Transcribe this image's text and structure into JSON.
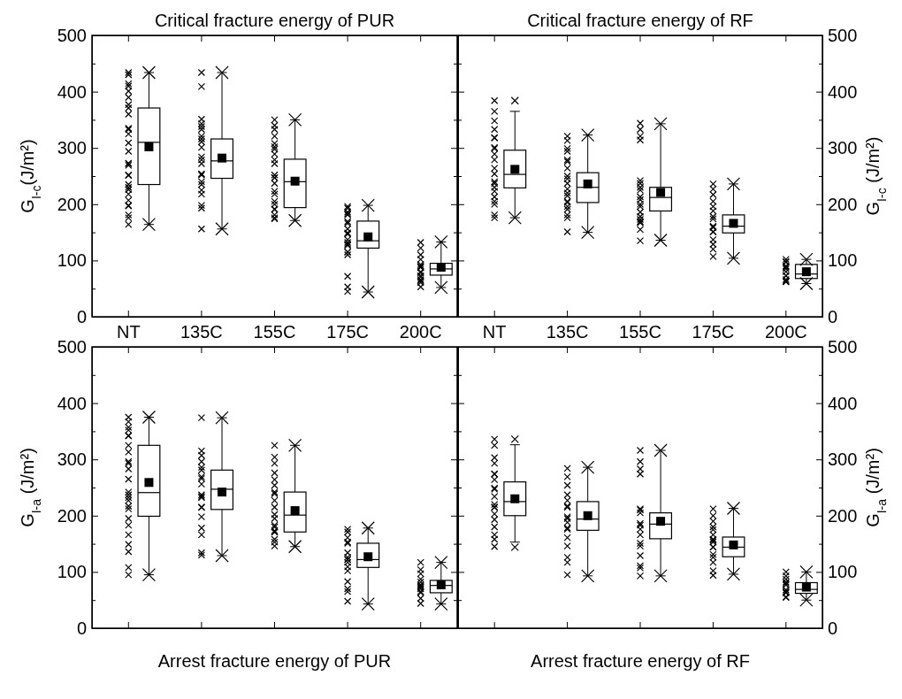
{
  "chart_data": [
    {
      "type": "box",
      "title": "Critical fracture energy of PUR",
      "ylabel": "G$_{I-c}$(J/m²)",
      "categories": [
        "NT",
        "135C",
        "155C",
        "175C",
        "200C"
      ],
      "ylim": [
        0,
        500
      ],
      "yticks": [
        0,
        {
          "value": 50,
          "label": null
        },
        100,
        {
          "value": 150,
          "label": null
        },
        200,
        {
          "value": 250,
          "label": null
        },
        300,
        {
          "value": 350,
          "label": null
        },
        400,
        {
          "value": 450,
          "label": null
        },
        500
      ],
      "marker": "cross",
      "series": [
        {
          "type": "scatter",
          "color": "#000000",
          "x": [
            "NT",
            "NT",
            "NT",
            "NT",
            "NT",
            "NT",
            "NT",
            "NT",
            "NT",
            "NT",
            "NT",
            "NT",
            "NT",
            "NT",
            "NT",
            "NT",
            "NT",
            "NT",
            "NT",
            "NT",
            "NT",
            "NT",
            "NT",
            "NT",
            "NT",
            "NT",
            "NT",
            "NT",
            "NT",
            "135C",
            "135C",
            "135C",
            "135C",
            "135C",
            "135C",
            "135C",
            "135C",
            "135C",
            "135C",
            "135C",
            "135C",
            "135C",
            "135C",
            "135C",
            "135C",
            "135C",
            "135C",
            "135C",
            "135C",
            "135C",
            "135C",
            "155C",
            "155C",
            "155C",
            "155C",
            "155C",
            "155C",
            "155C",
            "155C",
            "155C",
            "155C",
            "155C",
            "155C",
            "155C",
            "155C",
            "155C",
            "155C",
            "155C",
            "155C",
            "155C",
            "155C",
            "155C",
            "155C",
            "155C",
            "175C",
            "175C",
            "175C",
            "175C",
            "175C",
            "175C",
            "175C",
            "175C",
            "175C",
            "175C",
            "175C",
            "175C",
            "175C",
            "175C",
            "175C",
            "175C",
            "175C",
            "175C",
            "175C",
            "175C",
            "200C",
            "200C",
            "200C",
            "200C",
            "200C",
            "200C",
            "200C",
            "200C",
            "200C",
            "200C",
            "200C",
            "200C",
            "200C",
            "200C",
            "200C",
            "200C"
          ],
          "values": [
            434,
            430,
            410,
            414,
            401,
            390,
            371,
            377,
            360,
            335,
            333,
            325,
            309,
            294,
            273,
            269,
            272,
            251,
            252,
            235,
            226,
            230,
            207,
            218,
            197,
            198,
            176,
            164,
            181,
            434,
            409,
            351,
            343,
            333,
            338,
            321,
            316,
            311,
            301,
            284,
            272,
            279,
            254,
            252,
            225,
            235,
            218,
            198,
            193,
            156,
            240,
            350,
            340,
            333,
            321,
            308,
            302,
            298,
            272,
            279,
            289,
            252,
            247,
            247,
            237,
            218,
            223,
            205,
            200,
            191,
            191,
            181,
            174,
            176,
            193,
            196,
            181,
            183,
            186,
            169,
            166,
            156,
            147,
            149,
            129,
            137,
            132,
            127,
            115,
            110,
            115,
            72,
            53,
            45,
            132,
            122,
            110,
            88,
            93,
            88,
            90,
            80,
            78,
            73,
            66,
            61,
            64,
            53,
            102,
            71
          ]
        },
        {
          "color": "#000000",
          "boxes": [
            {
              "low": 164,
              "q1": 235,
              "median": 310,
              "q3": 371,
              "high": 434,
              "mean": 302
            },
            {
              "low": 156,
              "q1": 246,
              "median": 277,
              "q3": 316,
              "high": 434,
              "mean": 282
            },
            {
              "low": 171,
              "q1": 194,
              "median": 240,
              "q3": 280,
              "high": 350,
              "mean": 241
            },
            {
              "low": 44,
              "q1": 122,
              "median": 135,
              "q3": 170,
              "high": 198,
              "mean": 142
            },
            {
              "low": 52,
              "q1": 74,
              "median": 85,
              "q3": 95,
              "high": 133,
              "mean": 88
            }
          ]
        }
      ]
    },
    {
      "type": "box",
      "title": "Critical fracture energy of RF",
      "y2label": "G$_{I-c}$ (J/m²)",
      "categories": [
        "NT",
        "135C",
        "155C",
        "175C",
        "200C"
      ],
      "y2lim": [
        0,
        500
      ],
      "y2ticks": [
        0,
        {
          "value": 50,
          "label": null
        },
        100,
        {
          "value": 150,
          "label": null
        },
        200,
        {
          "value": 250,
          "label": null
        },
        300,
        {
          "value": 350,
          "label": null
        },
        400,
        {
          "value": 450,
          "label": null
        },
        500
      ],
      "marker": "cross",
      "series": [
        {
          "type": "scatter",
          "axis": "y2",
          "color": "#000000",
          "x": [
            "NT",
            "NT",
            "NT",
            "NT",
            "NT",
            "NT",
            "NT",
            "NT",
            "NT",
            "NT",
            "NT",
            "NT",
            "NT",
            "NT",
            "NT",
            "NT",
            "NT",
            "NT",
            "NT",
            "NT",
            "NT",
            "135C",
            "135C",
            "135C",
            "135C",
            "135C",
            "135C",
            "135C",
            "135C",
            "135C",
            "135C",
            "135C",
            "135C",
            "135C",
            "135C",
            "135C",
            "135C",
            "135C",
            "135C",
            "135C",
            "135C",
            "155C",
            "155C",
            "155C",
            "155C",
            "155C",
            "155C",
            "155C",
            "155C",
            "155C",
            "155C",
            "155C",
            "155C",
            "155C",
            "155C",
            "155C",
            "155C",
            "155C",
            "155C",
            "155C",
            "175C",
            "175C",
            "175C",
            "175C",
            "175C",
            "175C",
            "175C",
            "175C",
            "175C",
            "175C",
            "175C",
            "175C",
            "175C",
            "175C",
            "175C",
            "175C",
            "175C",
            "200C",
            "200C",
            "200C",
            "200C",
            "200C",
            "200C",
            "200C",
            "200C",
            "200C",
            "200C",
            "200C",
            "200C",
            "200C"
          ],
          "values": [
            384,
            365,
            348,
            333,
            318,
            318,
            299,
            301,
            289,
            279,
            264,
            254,
            237,
            240,
            230,
            223,
            213,
            200,
            205,
            181,
            176,
            321,
            313,
            299,
            294,
            279,
            276,
            264,
            250,
            245,
            237,
            227,
            220,
            215,
            205,
            203,
            196,
            191,
            176,
            181,
            151,
            344,
            333,
            321,
            314,
            242,
            237,
            230,
            225,
            208,
            213,
            200,
            196,
            186,
            178,
            173,
            167,
            169,
            155,
            135,
            236,
            227,
            217,
            205,
            196,
            188,
            178,
            174,
            159,
            161,
            159,
            151,
            151,
            137,
            129,
            120,
            107,
            102,
            97,
            98,
            90,
            88,
            85,
            80,
            73,
            73,
            66,
            62,
            63,
            63
          ]
        },
        {
          "axis": "y2",
          "color": "#000000",
          "boxes": [
            {
              "low": 176,
              "q1": 229,
              "median": 253,
              "q3": 296,
              "high": 365,
              "mean": 262,
              "outliers": [
                384
              ]
            },
            {
              "low": 150,
              "q1": 203,
              "median": 230,
              "q3": 256,
              "high": 323,
              "mean": 236
            },
            {
              "low": 136,
              "q1": 188,
              "median": 212,
              "q3": 230,
              "high": 343,
              "mean": 221
            },
            {
              "low": 104,
              "q1": 149,
              "median": 161,
              "q3": 181,
              "high": 236,
              "mean": 166
            },
            {
              "low": 59,
              "q1": 68,
              "median": 76,
              "q3": 93,
              "high": 102,
              "mean": 80
            }
          ]
        }
      ]
    },
    {
      "type": "box",
      "xlabel": "Arrest fracture energy of PUR",
      "ylabel": "G$_{I-a}$ (J/m²)",
      "tick_labels": "y",
      "categories": [
        "NT",
        "135C",
        "155C",
        "175C",
        "200C"
      ],
      "ylim": [
        0,
        500
      ],
      "yticks": [
        0,
        {
          "value": 50,
          "label": null
        },
        100,
        {
          "value": 150,
          "label": null
        },
        200,
        {
          "value": 250,
          "label": null
        },
        300,
        {
          "value": 350,
          "label": null
        },
        400,
        {
          "value": 450,
          "label": null
        },
        500
      ],
      "marker": "cross",
      "series": [
        {
          "type": "scatter",
          "color": "#000000",
          "x": [
            "NT",
            "NT",
            "NT",
            "NT",
            "NT",
            "NT",
            "NT",
            "NT",
            "NT",
            "NT",
            "NT",
            "NT",
            "NT",
            "NT",
            "NT",
            "NT",
            "NT",
            "NT",
            "NT",
            "NT",
            "NT",
            "NT",
            "NT",
            "NT",
            "NT",
            "135C",
            "135C",
            "135C",
            "135C",
            "135C",
            "135C",
            "135C",
            "135C",
            "135C",
            "135C",
            "135C",
            "135C",
            "135C",
            "135C",
            "135C",
            "135C",
            "135C",
            "135C",
            "135C",
            "155C",
            "155C",
            "155C",
            "155C",
            "155C",
            "155C",
            "155C",
            "155C",
            "155C",
            "155C",
            "155C",
            "155C",
            "155C",
            "155C",
            "155C",
            "155C",
            "155C",
            "155C",
            "155C",
            "155C",
            "175C",
            "175C",
            "175C",
            "175C",
            "175C",
            "175C",
            "175C",
            "175C",
            "175C",
            "175C",
            "175C",
            "175C",
            "175C",
            "175C",
            "175C",
            "175C",
            "200C",
            "200C",
            "200C",
            "200C",
            "200C",
            "200C",
            "200C",
            "200C",
            "200C",
            "200C",
            "200C",
            "200C",
            "200C"
          ],
          "values": [
            375,
            367,
            357,
            352,
            342,
            342,
            325,
            313,
            296,
            293,
            283,
            265,
            242,
            237,
            227,
            232,
            217,
            212,
            195,
            183,
            166,
            149,
            136,
            108,
            95,
            374,
            315,
            307,
            296,
            286,
            281,
            266,
            269,
            256,
            234,
            237,
            232,
            215,
            215,
            198,
            178,
            166,
            134,
            130,
            325,
            304,
            293,
            276,
            264,
            254,
            242,
            239,
            227,
            215,
            202,
            195,
            183,
            180,
            171,
            171,
            173,
            158,
            153,
            146,
            176,
            171,
            161,
            151,
            153,
            134,
            126,
            122,
            122,
            117,
            109,
            102,
            83,
            70,
            65,
            48,
            117,
            104,
            97,
            87,
            77,
            82,
            75,
            73,
            65,
            63,
            70,
            53,
            44
          ]
        },
        {
          "color": "#000000",
          "boxes": [
            {
              "low": 95,
              "q1": 199,
              "median": 241,
              "q3": 325,
              "high": 375,
              "mean": 259
            },
            {
              "low": 129,
              "q1": 211,
              "median": 247,
              "q3": 281,
              "high": 374,
              "mean": 242
            },
            {
              "low": 145,
              "q1": 171,
              "median": 201,
              "q3": 242,
              "high": 325,
              "mean": 209
            },
            {
              "low": 43,
              "q1": 108,
              "median": 122,
              "q3": 151,
              "high": 178,
              "mean": 127
            },
            {
              "low": 43,
              "q1": 63,
              "median": 76,
              "q3": 85,
              "high": 117,
              "mean": 77
            }
          ]
        }
      ]
    },
    {
      "type": "box",
      "xlabel": "Arrest fracture energy of RF",
      "y2label": "G$_{I-a}$ (J/m²)",
      "tick_labels": "y",
      "categories": [
        "NT",
        "135C",
        "155C",
        "175C",
        "200C"
      ],
      "y2lim": [
        0,
        500
      ],
      "y2ticks": [
        0,
        {
          "value": 50,
          "label": null
        },
        100,
        {
          "value": 150,
          "label": null
        },
        200,
        {
          "value": 250,
          "label": null
        },
        300,
        {
          "value": 350,
          "label": null
        },
        400,
        {
          "value": 450,
          "label": null
        },
        500
      ],
      "marker": "cross",
      "series": [
        {
          "type": "scatter",
          "axis": "y2",
          "color": "#000000",
          "x": [
            "NT",
            "NT",
            "NT",
            "NT",
            "NT",
            "NT",
            "NT",
            "NT",
            "NT",
            "NT",
            "NT",
            "NT",
            "NT",
            "NT",
            "NT",
            "NT",
            "NT",
            "NT",
            "NT",
            "135C",
            "135C",
            "135C",
            "135C",
            "135C",
            "135C",
            "135C",
            "135C",
            "135C",
            "135C",
            "135C",
            "135C",
            "135C",
            "135C",
            "135C",
            "135C",
            "135C",
            "155C",
            "155C",
            "155C",
            "155C",
            "155C",
            "155C",
            "155C",
            "155C",
            "155C",
            "155C",
            "155C",
            "155C",
            "155C",
            "155C",
            "155C",
            "155C",
            "155C",
            "175C",
            "175C",
            "175C",
            "175C",
            "175C",
            "175C",
            "175C",
            "175C",
            "175C",
            "175C",
            "175C",
            "175C",
            "175C",
            "175C",
            "175C",
            "175C",
            "200C",
            "200C",
            "200C",
            "200C",
            "200C",
            "200C",
            "200C",
            "200C",
            "200C",
            "200C",
            "200C",
            "200C"
          ],
          "values": [
            336,
            325,
            303,
            293,
            274,
            274,
            264,
            247,
            249,
            234,
            215,
            220,
            215,
            203,
            193,
            180,
            166,
            158,
            145,
            284,
            269,
            254,
            237,
            227,
            215,
            217,
            195,
            198,
            188,
            176,
            178,
            161,
            146,
            126,
            117,
            95,
            316,
            296,
            283,
            274,
            210,
            212,
            205,
            183,
            186,
            176,
            166,
            151,
            146,
            129,
            107,
            111,
            93,
            212,
            200,
            190,
            180,
            175,
            166,
            153,
            158,
            156,
            144,
            144,
            131,
            126,
            117,
            102,
            94,
            100,
            93,
            87,
            82,
            80,
            77,
            68,
            65,
            63,
            63,
            55,
            55
          ]
        },
        {
          "axis": "y2",
          "color": "#000000",
          "boxes": [
            {
              "low": 153,
              "q1": 200,
              "median": 225,
              "q3": 260,
              "high": 326,
              "mean": 230,
              "outliers": [
                336,
                144
              ]
            },
            {
              "low": 93,
              "q1": 174,
              "median": 194,
              "q3": 225,
              "high": 286,
              "mean": 200
            },
            {
              "low": 93,
              "q1": 159,
              "median": 185,
              "q3": 205,
              "high": 316,
              "mean": 190
            },
            {
              "low": 96,
              "q1": 127,
              "median": 144,
              "q3": 162,
              "high": 213,
              "mean": 148
            },
            {
              "low": 50,
              "q1": 62,
              "median": 69,
              "q3": 81,
              "high": 100,
              "mean": 73
            }
          ]
        }
      ]
    }
  ]
}
